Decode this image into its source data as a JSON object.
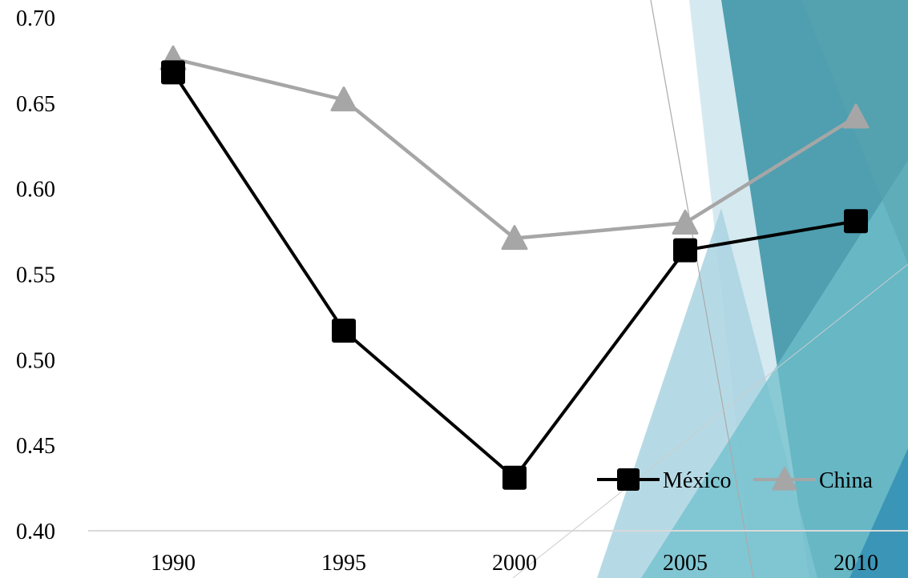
{
  "theme": {
    "decor_colors": [
      "#d5e9f0",
      "#a9d3e1",
      "#6fbfcc",
      "#4f9fb0",
      "#3b95b7",
      "#5aa3b0"
    ]
  },
  "chart_data": {
    "type": "line",
    "title": "",
    "xlabel": "",
    "ylabel": "",
    "categories": [
      "1990",
      "1995",
      "2000",
      "2005",
      "2010"
    ],
    "ylim": [
      0.4,
      0.7
    ],
    "yticks": [
      "0.40",
      "0.45",
      "0.50",
      "0.55",
      "0.60",
      "0.65",
      "0.70"
    ],
    "grid": false,
    "legend_position": "bottom-right",
    "series": [
      {
        "name": "México",
        "values": [
          0.668,
          0.517,
          0.431,
          0.564,
          0.581
        ],
        "color": "#000000",
        "marker": "square"
      },
      {
        "name": "China",
        "values": [
          0.676,
          0.652,
          0.571,
          0.58,
          0.642
        ],
        "color": "#a6a6a6",
        "marker": "triangle"
      }
    ]
  }
}
